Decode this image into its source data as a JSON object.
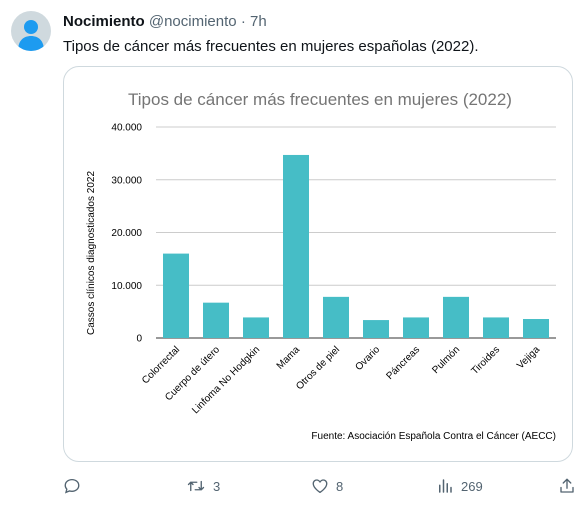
{
  "tweet": {
    "author_name": "Nocimiento",
    "author_handle": "@nocimiento",
    "separator": "·",
    "time": "7h",
    "text": "Tipos de cáncer más frecuentes en mujeres españolas (2022)."
  },
  "actions": {
    "reply_icon": "reply-icon",
    "retweet_icon": "retweet-icon",
    "retweet_count": "3",
    "like_icon": "heart-icon",
    "like_count": "8",
    "views_icon": "views-icon",
    "views_count": "269",
    "share_icon": "share-icon"
  },
  "colors": {
    "bar": "#46bdc6",
    "grid": "#cccccc",
    "title": "#757575",
    "text": "#000000"
  },
  "chart_data": {
    "type": "bar",
    "title": "Tipos de cáncer más frecuentes en mujeres (2022)",
    "xlabel": "",
    "ylabel": "Cassos clínicos diagnosticados 2022",
    "source": "Fuente: Asociación Española Contra el Cáncer (AECC)",
    "categories": [
      "Colorrectal",
      "Cuerpo de útero",
      "Linfoma No Hodgkin",
      "Mama",
      "Otros de piel",
      "Ovario",
      "Páncreas",
      "Pulmón",
      "Tiroides",
      "Vejiga"
    ],
    "values": [
      16000,
      6700,
      3900,
      34700,
      7800,
      3400,
      3900,
      7800,
      3900,
      3600
    ],
    "yticks": [
      "0",
      "10.000",
      "20.000",
      "30.000",
      "40.000"
    ],
    "ylim": [
      0,
      40000
    ],
    "grid": true,
    "legend": "none"
  }
}
